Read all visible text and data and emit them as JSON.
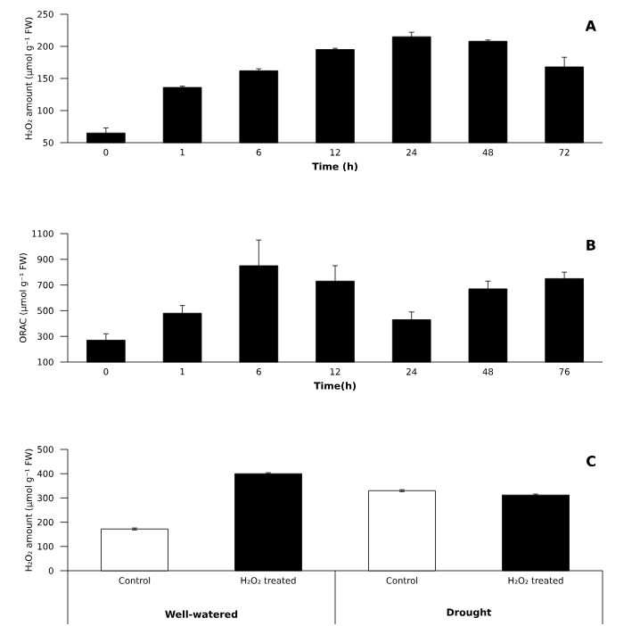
{
  "chart_data": [
    {
      "type": "bar",
      "title": "A",
      "xlabel": "Time (h)",
      "ylabel": "H₂O₂ amount (μmol g⁻¹ FW)",
      "categories": [
        "0",
        "1",
        "6",
        "12",
        "24",
        "48",
        "72"
      ],
      "values": [
        65,
        136,
        162,
        195,
        215,
        208,
        168
      ],
      "errors": [
        8,
        2,
        3,
        2,
        7,
        2,
        15
      ],
      "color": "#000000",
      "ylim": [
        50,
        250
      ],
      "yticks": [
        50,
        100,
        150,
        200,
        250
      ]
    },
    {
      "type": "bar",
      "title": "B",
      "xlabel": "Time(h)",
      "ylabel": "ORAC (μmol g⁻¹ FW)",
      "categories": [
        "0",
        "1",
        "6",
        "12",
        "24",
        "48",
        "76"
      ],
      "values": [
        270,
        480,
        850,
        730,
        430,
        670,
        750
      ],
      "errors": [
        50,
        60,
        200,
        120,
        60,
        60,
        50
      ],
      "color": "#000000",
      "ylim": [
        100,
        1100
      ],
      "yticks": [
        100,
        300,
        500,
        700,
        900,
        1100
      ]
    },
    {
      "type": "bar",
      "title": "C",
      "ylabel": "H₂O₂ amount (μmol g⁻¹ FW)",
      "categories": [
        "Control",
        "H₂O₂ treated",
        "Control",
        "H₂O₂ treated"
      ],
      "values": [
        172,
        400,
        330,
        312
      ],
      "errors": [
        4,
        4,
        4,
        4
      ],
      "colors": [
        "#ffffff",
        "#000000",
        "#ffffff",
        "#000000"
      ],
      "annotations": [
        "Well-watered",
        "Drought"
      ],
      "ylim": [
        0,
        500
      ],
      "yticks": [
        0,
        100,
        200,
        300,
        400,
        500
      ]
    }
  ]
}
